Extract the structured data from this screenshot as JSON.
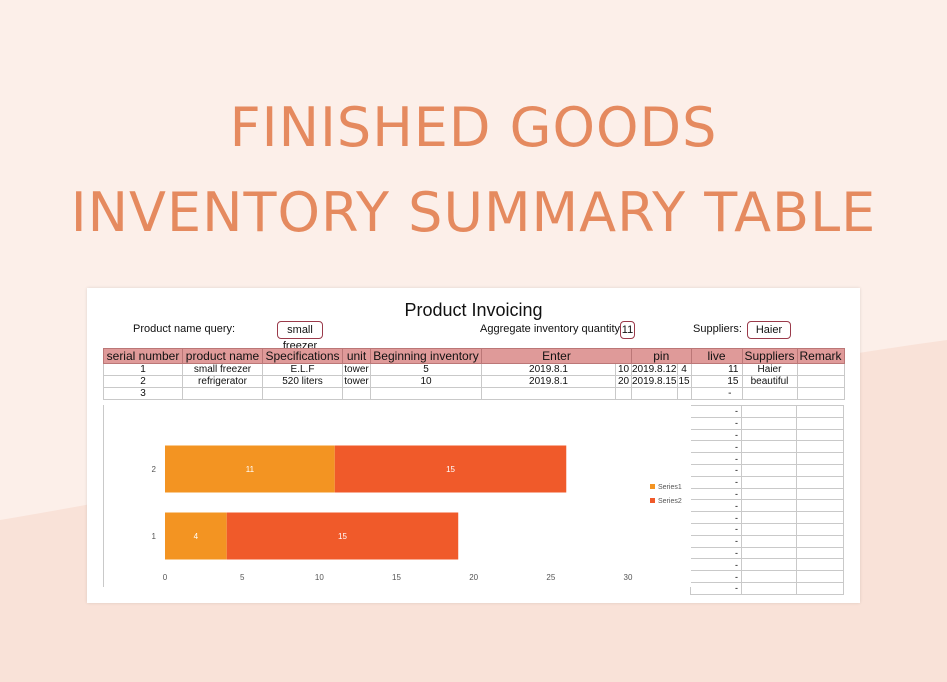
{
  "headline": {
    "line1": "FINISHED GOODS",
    "line2": "INVENTORY SUMMARY TABLE"
  },
  "sheet": {
    "title": "Product Invoicing",
    "product_query_label": "Product name query:",
    "product_query_value": "small freezer",
    "aggregate_label": "Aggregate inventory quantity",
    "aggregate_value": "11",
    "suppliers_label": "Suppliers:",
    "suppliers_value": "Haier"
  },
  "table": {
    "headers": [
      "serial number",
      "product name",
      "Specifications",
      "unit",
      "Beginning inventory",
      "Enter",
      "pin",
      "live",
      "Suppliers",
      "Remark"
    ],
    "rows": [
      {
        "serial": "1",
        "product": "small freezer",
        "spec": "E.L.F",
        "unit": "tower",
        "begin": "5",
        "enter_date": "2019.8.1",
        "enter_qty": "10",
        "pin_date": "2019.8.12",
        "pin_qty": "4",
        "live": "11",
        "supplier": "Haier",
        "remark": ""
      },
      {
        "serial": "2",
        "product": "refrigerator",
        "spec": "520 liters",
        "unit": "tower",
        "begin": "10",
        "enter_date": "2019.8.1",
        "enter_qty": "20",
        "pin_date": "2019.8.15",
        "pin_qty": "15",
        "live": "15",
        "supplier": "beautiful",
        "remark": ""
      },
      {
        "serial": "3",
        "product": "",
        "spec": "",
        "unit": "",
        "begin": "",
        "enter_date": "",
        "enter_qty": "",
        "pin_date": "",
        "pin_qty": "",
        "live": "",
        "supplier": "",
        "remark": ""
      }
    ],
    "dash": "-"
  },
  "colors": {
    "series1": "#f39422",
    "series2": "#f05a2a",
    "header": "#df9a99",
    "headline": "#e58a5f"
  },
  "chart_data": {
    "type": "bar",
    "orientation": "horizontal",
    "stacked": true,
    "categories": [
      "1",
      "2"
    ],
    "series": [
      {
        "name": "Series1",
        "values": [
          4,
          11
        ]
      },
      {
        "name": "Series2",
        "values": [
          15,
          15
        ]
      }
    ],
    "xlim": [
      0,
      30
    ],
    "xticks": [
      "0",
      "5",
      "10",
      "15",
      "20",
      "25",
      "30"
    ],
    "legend": "right"
  }
}
